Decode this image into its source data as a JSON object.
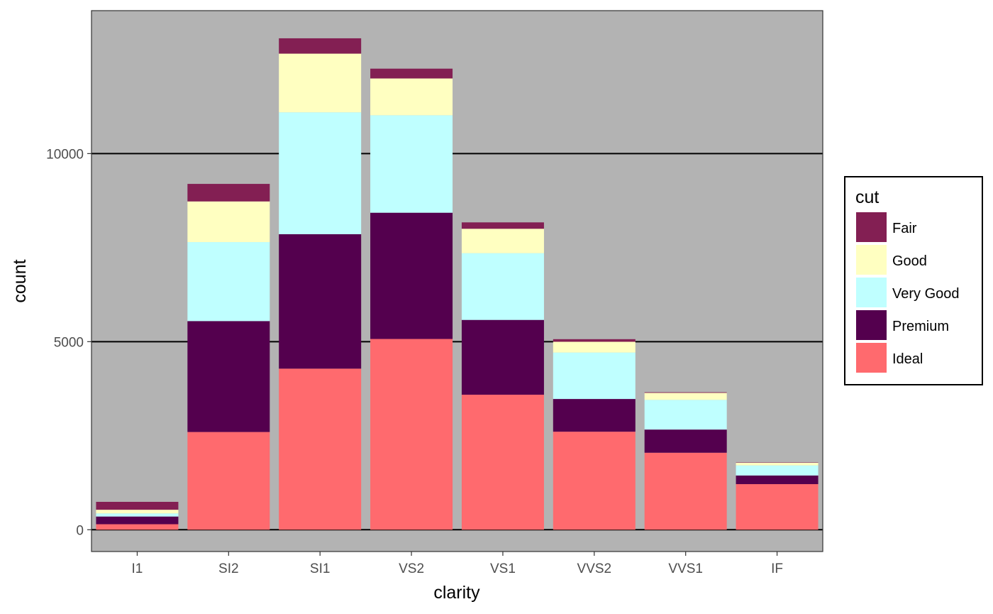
{
  "chart_data": {
    "type": "bar",
    "stacked": true,
    "xlabel": "clarity",
    "ylabel": "count",
    "categories": [
      "I1",
      "SI2",
      "SI1",
      "VS2",
      "VS1",
      "VVS2",
      "VVS1",
      "IF"
    ],
    "ylim": [
      -580,
      13800
    ],
    "yticks": [
      0,
      5000,
      10000
    ],
    "grid": "major-y",
    "panel_background": "#b3b3b3",
    "legend": {
      "title": "cut",
      "position": "right"
    },
    "series": [
      {
        "name": "Ideal",
        "color": "#ff6a6e",
        "values": [
          146,
          2598,
          4282,
          5071,
          3589,
          2606,
          2047,
          1212
        ]
      },
      {
        "name": "Premium",
        "color": "#54004e",
        "values": [
          205,
          2949,
          3575,
          3357,
          1989,
          870,
          616,
          230
        ]
      },
      {
        "name": "Very Good",
        "color": "#bfffff",
        "values": [
          84,
          2100,
          3240,
          2591,
          1775,
          1235,
          789,
          268
        ]
      },
      {
        "name": "Good",
        "color": "#ffffc1",
        "values": [
          96,
          1081,
          1560,
          978,
          648,
          286,
          186,
          71
        ]
      },
      {
        "name": "Fair",
        "color": "#831f53",
        "values": [
          210,
          466,
          408,
          261,
          170,
          69,
          17,
          9
        ]
      }
    ]
  }
}
